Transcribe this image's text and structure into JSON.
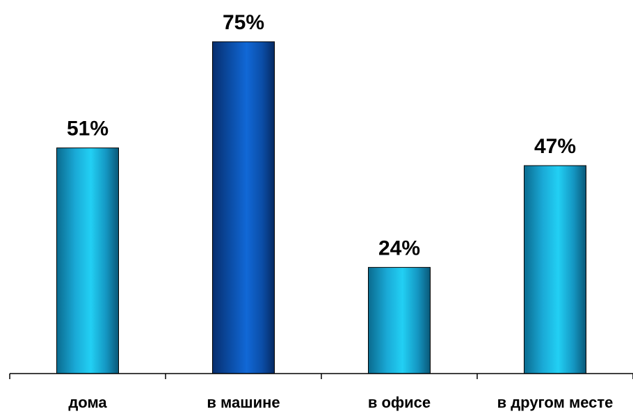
{
  "chart_data": {
    "type": "bar",
    "categories": [
      "дома",
      "в машине",
      "в офисе",
      "в другом месте"
    ],
    "values": [
      51,
      75,
      24,
      47
    ],
    "value_labels": [
      "51%",
      "75%",
      "24%",
      "47%"
    ],
    "unit": "%",
    "title": "",
    "xlabel": "",
    "ylabel": "",
    "ylim": [
      0,
      75
    ],
    "grid": false,
    "legend": "none",
    "bar_colors": [
      "#1ab8e0",
      "#0b55b8",
      "#1ab8e0",
      "#1ab8e0"
    ],
    "axis_color": "#000000"
  }
}
